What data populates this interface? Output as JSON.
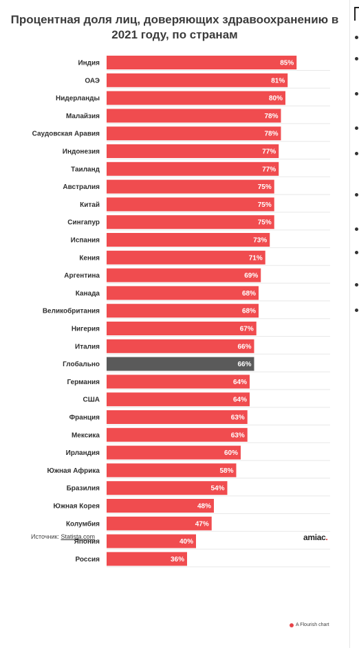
{
  "chart_data": {
    "type": "bar",
    "orientation": "horizontal",
    "title": "Процентная доля лиц, доверяющих здравоохранению в 2021 году, по странам",
    "categories": [
      "Индия",
      "ОАЭ",
      "Нидерланды",
      "Малайзия",
      "Саудовская Аравия",
      "Индонезия",
      "Таиланд",
      "Австралия",
      "Китай",
      "Сингапур",
      "Испания",
      "Кения",
      "Аргентина",
      "Канада",
      "Великобритания",
      "Нигерия",
      "Италия",
      "Глобально",
      "Германия",
      "США",
      "Франция",
      "Мексика",
      "Ирландия",
      "Южная Африка",
      "Бразилия",
      "Южная Корея",
      "Колумбия",
      "Япония",
      "Россия"
    ],
    "values": [
      85,
      81,
      80,
      78,
      78,
      77,
      77,
      75,
      75,
      75,
      73,
      71,
      69,
      68,
      68,
      67,
      66,
      66,
      64,
      64,
      63,
      63,
      60,
      58,
      54,
      48,
      47,
      40,
      36
    ],
    "value_labels": [
      "85%",
      "81%",
      "80%",
      "78%",
      "78%",
      "77%",
      "77%",
      "75%",
      "75%",
      "75%",
      "73%",
      "71%",
      "69%",
      "68%",
      "68%",
      "67%",
      "66%",
      "66%",
      "64%",
      "64%",
      "63%",
      "63%",
      "60%",
      "58%",
      "54%",
      "48%",
      "47%",
      "40%",
      "36%"
    ],
    "highlight_category": "Глобально",
    "colors": {
      "bar": "#f04c4f",
      "highlight": "#5a5a5a",
      "value_label": "#ffffff",
      "grid": "#e8e8e8"
    },
    "xlim": [
      0,
      100
    ],
    "grid": true,
    "legend": "none"
  },
  "footer": {
    "source_prefix": "Источник:",
    "source_link": "Statista.com",
    "brand": "amiac",
    "brand_dot": ".",
    "flourish_credit": "A Flourish chart"
  }
}
